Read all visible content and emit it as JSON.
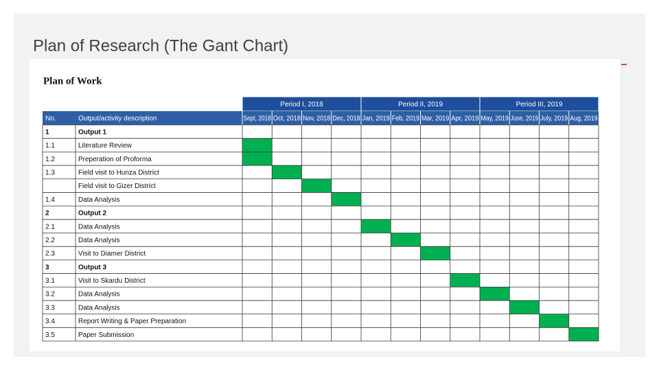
{
  "slide_title": "Plan of Research (The Gant Chart)",
  "table": {
    "heading": "Plan of Work",
    "columns": {
      "no": "No.",
      "description": "Output/activity description"
    },
    "periods": [
      "Period I, 2018",
      "Period II, 2019",
      "Period III, 2019"
    ],
    "months": [
      "Sept, 2018",
      "Oct, 2018",
      "Nov, 2018",
      "Dec, 2018",
      "Jan, 2019",
      "Feb, 2019",
      "Mar, 2019",
      "Apr, 2019",
      "May, 2019",
      "June, 2019",
      "July, 2019",
      "Aug, 2019"
    ],
    "rows": [
      {
        "no": "1",
        "description": "Output 1",
        "bold": true,
        "active": []
      },
      {
        "no": "1.1",
        "description": "Literature Review",
        "active": [
          0
        ]
      },
      {
        "no": "1.2",
        "description": "Preperation of Proforma",
        "active": [
          0
        ]
      },
      {
        "no": "1.3",
        "description": "Field visit to Hunza District",
        "active": [
          1
        ]
      },
      {
        "no": null,
        "description": "Field visit to Gizer District",
        "active": [
          2
        ]
      },
      {
        "no": "1.4",
        "description": "Data Analysis",
        "active": [
          3
        ]
      },
      {
        "no": "2",
        "description": "Output 2",
        "bold": true,
        "active": []
      },
      {
        "no": "2.1",
        "description": "Data Analysis",
        "active": [
          4
        ]
      },
      {
        "no": "2.2",
        "description": "Data Analysis",
        "active": [
          5
        ]
      },
      {
        "no": "2.3",
        "description": "Visit to Diamer District",
        "active": [
          6
        ]
      },
      {
        "no": "3",
        "description": "Output 3",
        "bold": true,
        "active": []
      },
      {
        "no": "3.1",
        "description": "Visit to Skardu District",
        "active": [
          7
        ]
      },
      {
        "no": "3.2",
        "description": "Data Analysis",
        "active": [
          8
        ]
      },
      {
        "no": "3.3",
        "description": "Data Analysis",
        "active": [
          9
        ]
      },
      {
        "no": "3.4",
        "description": "Report Writing & Paper Preparation",
        "active": [
          10
        ]
      },
      {
        "no": "3.5",
        "description": "Paper Submission",
        "active": [
          11
        ]
      }
    ],
    "active_color": "#00b050"
  }
}
